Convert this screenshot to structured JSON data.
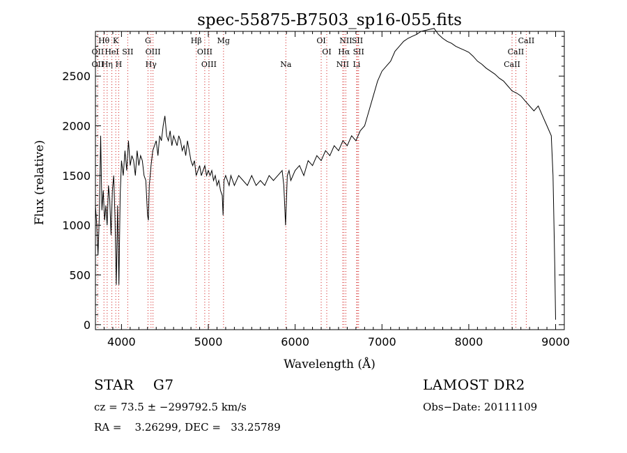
{
  "chart_data": {
    "type": "line",
    "title": "spec-55875-B7503_sp16-055.fits",
    "xlabel": "Wavelength (Å)",
    "ylabel": "Flux (relative)",
    "xlim": [
      3700,
      9100
    ],
    "ylim": [
      -50,
      2950
    ],
    "grid": false,
    "legend": "none",
    "xticks": [
      {
        "value": 4000,
        "label": "4000"
      },
      {
        "value": 5000,
        "label": "5000"
      },
      {
        "value": 6000,
        "label": "6000"
      },
      {
        "value": 7000,
        "label": "7000"
      },
      {
        "value": 8000,
        "label": "8000"
      },
      {
        "value": 9000,
        "label": "9000"
      }
    ],
    "yticks": [
      {
        "value": 0,
        "label": "0"
      },
      {
        "value": 500,
        "label": "500"
      },
      {
        "value": 1000,
        "label": "1000"
      },
      {
        "value": 1500,
        "label": "1500"
      },
      {
        "value": 2000,
        "label": "2000"
      },
      {
        "value": 2500,
        "label": "2500"
      }
    ],
    "line_color": "#000000",
    "marker_color": "#d11a1a",
    "spectrum": {
      "x": [
        3700,
        3715,
        3730,
        3745,
        3760,
        3775,
        3790,
        3805,
        3820,
        3835,
        3850,
        3865,
        3880,
        3895,
        3910,
        3925,
        3940,
        3955,
        3970,
        3985,
        4000,
        4020,
        4040,
        4060,
        4080,
        4100,
        4120,
        4140,
        4160,
        4180,
        4200,
        4220,
        4240,
        4260,
        4280,
        4300,
        4310,
        4320,
        4340,
        4360,
        4380,
        4400,
        4420,
        4440,
        4460,
        4480,
        4500,
        4520,
        4540,
        4560,
        4580,
        4600,
        4620,
        4640,
        4660,
        4680,
        4700,
        4720,
        4740,
        4760,
        4780,
        4800,
        4820,
        4840,
        4860,
        4880,
        4900,
        4920,
        4940,
        4960,
        4980,
        5000,
        5020,
        5040,
        5060,
        5080,
        5100,
        5120,
        5140,
        5160,
        5170,
        5180,
        5200,
        5220,
        5240,
        5260,
        5280,
        5300,
        5350,
        5400,
        5450,
        5500,
        5550,
        5600,
        5650,
        5700,
        5750,
        5800,
        5850,
        5870,
        5890,
        5910,
        5930,
        5950,
        6000,
        6050,
        6100,
        6150,
        6200,
        6250,
        6300,
        6350,
        6400,
        6450,
        6500,
        6550,
        6600,
        6650,
        6700,
        6750,
        6800,
        6850,
        6900,
        6950,
        7000,
        7050,
        7100,
        7150,
        7200,
        7250,
        7300,
        7350,
        7400,
        7450,
        7500,
        7550,
        7600,
        7650,
        7700,
        7750,
        7800,
        7850,
        7900,
        7950,
        8000,
        8050,
        8100,
        8150,
        8200,
        8250,
        8300,
        8350,
        8400,
        8450,
        8500,
        8550,
        8600,
        8650,
        8700,
        8750,
        8800,
        8850,
        8900,
        8950,
        8970,
        8990,
        9000
      ],
      "y": [
        1200,
        1000,
        700,
        1100,
        1900,
        1150,
        1350,
        1050,
        1200,
        1000,
        1400,
        1250,
        900,
        1350,
        1500,
        1100,
        400,
        1200,
        400,
        1300,
        1650,
        1500,
        1750,
        1550,
        1850,
        1600,
        1700,
        1650,
        1500,
        1750,
        1600,
        1700,
        1650,
        1500,
        1450,
        1100,
        1050,
        1400,
        1600,
        1750,
        1800,
        1850,
        1700,
        1900,
        1850,
        2000,
        2100,
        1900,
        1850,
        1950,
        1800,
        1900,
        1850,
        1800,
        1900,
        1850,
        1750,
        1800,
        1700,
        1850,
        1750,
        1650,
        1600,
        1650,
        1500,
        1550,
        1600,
        1500,
        1550,
        1600,
        1500,
        1550,
        1500,
        1550,
        1450,
        1500,
        1400,
        1450,
        1350,
        1300,
        1100,
        1450,
        1500,
        1450,
        1400,
        1500,
        1450,
        1400,
        1500,
        1450,
        1400,
        1500,
        1400,
        1450,
        1400,
        1500,
        1450,
        1500,
        1550,
        1400,
        1000,
        1500,
        1550,
        1450,
        1550,
        1600,
        1500,
        1650,
        1600,
        1700,
        1650,
        1750,
        1700,
        1800,
        1750,
        1850,
        1800,
        1900,
        1850,
        1950,
        2000,
        2150,
        2300,
        2450,
        2550,
        2600,
        2650,
        2750,
        2800,
        2850,
        2880,
        2900,
        2920,
        2950,
        2960,
        2970,
        2980,
        2920,
        2880,
        2850,
        2830,
        2800,
        2780,
        2760,
        2740,
        2700,
        2650,
        2620,
        2580,
        2550,
        2520,
        2480,
        2450,
        2400,
        2350,
        2330,
        2300,
        2250,
        2200,
        2150,
        2200,
        2100,
        2000,
        1900,
        1500,
        600,
        50
      ]
    },
    "lines": [
      {
        "name": "Hθ",
        "wl": 3798,
        "row": 0
      },
      {
        "name": "K",
        "wl": 3934,
        "row": 0
      },
      {
        "name": "G",
        "wl": 4305,
        "row": 0
      },
      {
        "name": "Hβ",
        "wl": 4861,
        "row": 0
      },
      {
        "name": "Mg",
        "wl": 5175,
        "row": 0
      },
      {
        "name": "OI",
        "wl": 6300,
        "row": 0
      },
      {
        "name": "NII",
        "wl": 6584,
        "row": 0
      },
      {
        "name": "SII",
        "wl": 6717,
        "row": 0
      },
      {
        "name": "CaII",
        "wl": 8662,
        "row": 0
      },
      {
        "name": "OII",
        "wl": 3727,
        "row": 1
      },
      {
        "name": "HeI",
        "wl": 3889,
        "row": 1
      },
      {
        "name": "SII",
        "wl": 4072,
        "row": 1
      },
      {
        "name": "OIII",
        "wl": 4363,
        "row": 1
      },
      {
        "name": "OIII",
        "wl": 4959,
        "row": 1
      },
      {
        "name": "OI",
        "wl": 6364,
        "row": 1
      },
      {
        "name": "Hα",
        "wl": 6563,
        "row": 1
      },
      {
        "name": "SII",
        "wl": 6731,
        "row": 1
      },
      {
        "name": "CaII",
        "wl": 8542,
        "row": 1
      },
      {
        "name": "OII",
        "wl": 3727,
        "row": 2
      },
      {
        "name": "Hη",
        "wl": 3835,
        "row": 2
      },
      {
        "name": "H",
        "wl": 3968,
        "row": 2
      },
      {
        "name": "Hγ",
        "wl": 4340,
        "row": 2
      },
      {
        "name": "OIII",
        "wl": 5007,
        "row": 2
      },
      {
        "name": "Na",
        "wl": 5893,
        "row": 2
      },
      {
        "name": "NII",
        "wl": 6548,
        "row": 2
      },
      {
        "name": "Li",
        "wl": 6708,
        "row": 2
      },
      {
        "name": "CaII",
        "wl": 8498,
        "row": 2
      }
    ]
  },
  "info": {
    "object_class": "STAR    G7",
    "survey": "LAMOST DR2",
    "cz": "cz = 73.5 ± −299792.5 km/s",
    "obs_date": "Obs−Date: 20111109",
    "radec": "RA =    3.26299, DEC =   33.25789"
  }
}
